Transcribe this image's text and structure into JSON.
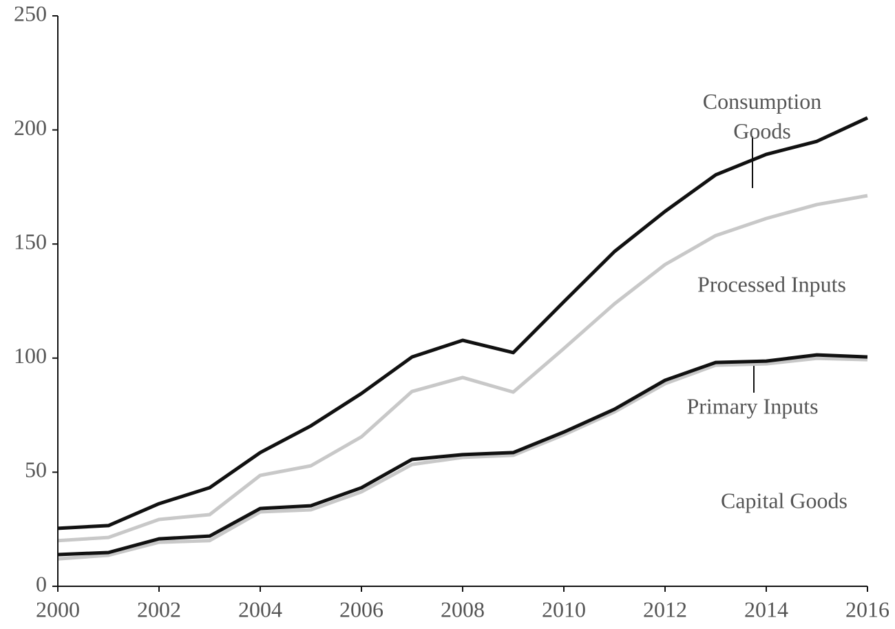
{
  "chart_data": {
    "type": "line",
    "x": [
      2000,
      2001,
      2002,
      2003,
      2004,
      2005,
      2006,
      2007,
      2008,
      2009,
      2010,
      2011,
      2012,
      2013,
      2014,
      2015,
      2016
    ],
    "xlim": [
      2000,
      2016
    ],
    "xticks": [
      2000,
      2002,
      2004,
      2006,
      2008,
      2010,
      2012,
      2014,
      2016
    ],
    "ylim": [
      0,
      250
    ],
    "yticks": [
      0,
      50,
      100,
      150,
      200,
      250
    ],
    "series": [
      {
        "name": "Capital Goods",
        "color": "#c8c8c8",
        "values": [
          12,
          13.6,
          19.3,
          20,
          32.6,
          33.5,
          41.4,
          53.4,
          56.5,
          57.4,
          66.4,
          76.4,
          88.8,
          96.9,
          97.5,
          99.9,
          99.3
        ]
      },
      {
        "name": "Primary Inputs",
        "color": "#111111",
        "values": [
          13.9,
          14.8,
          20.8,
          22,
          34.1,
          35.3,
          43.2,
          55.6,
          57.7,
          58.6,
          67.6,
          77.6,
          90.3,
          98.1,
          98.7,
          101.4,
          100.5
        ]
      },
      {
        "name": "Processed Inputs",
        "color": "#c8c8c8",
        "values": [
          20,
          21.4,
          29.3,
          31.4,
          48.6,
          52.8,
          65.5,
          85.4,
          91.5,
          85.1,
          104.2,
          123.8,
          141,
          153.7,
          161.2,
          167.3,
          171.2
        ]
      },
      {
        "name": "Consumption Goods",
        "color": "#111111",
        "values": [
          25.4,
          26.6,
          36.2,
          43.2,
          58.6,
          70.3,
          84.5,
          100.5,
          107.8,
          102.4,
          124.7,
          146.7,
          164.3,
          180.3,
          189.3,
          195,
          205.3
        ]
      }
    ]
  }
}
